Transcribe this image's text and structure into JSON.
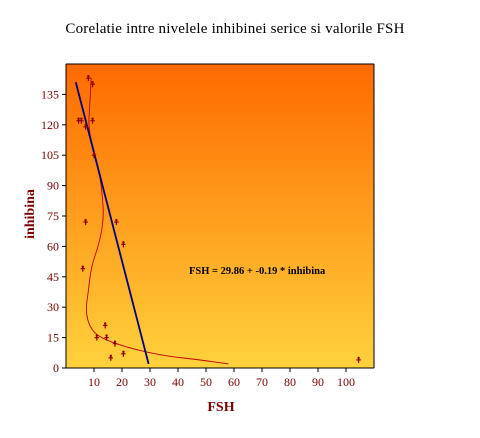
{
  "chart_data": {
    "type": "scatter",
    "title": "Corelatie intre nivelele inhibinei serice si valorile FSH",
    "xlabel": "FSH",
    "ylabel": "inhibina",
    "xlim": [
      0,
      110
    ],
    "ylim": [
      0,
      150
    ],
    "xticks": [
      10,
      20,
      30,
      40,
      50,
      60,
      70,
      80,
      90,
      100
    ],
    "yticks": [
      0,
      15,
      30,
      45,
      60,
      75,
      90,
      105,
      120,
      135
    ],
    "grid": false,
    "background": "orange-to-yellow vertical gradient",
    "colors": {
      "gradient_top": "#ff6a00",
      "gradient_bottom": "#ffd23c",
      "points": "#8b0000",
      "regression_line": "#000080",
      "smooth_curve": "#c00000",
      "axis_text": "#7a0000"
    },
    "points": [
      {
        "x": 8,
        "y": 143
      },
      {
        "x": 9.5,
        "y": 140
      },
      {
        "x": 4.5,
        "y": 122
      },
      {
        "x": 5.5,
        "y": 122
      },
      {
        "x": 9.5,
        "y": 122
      },
      {
        "x": 7,
        "y": 119
      },
      {
        "x": 10,
        "y": 105
      },
      {
        "x": 7,
        "y": 72
      },
      {
        "x": 18,
        "y": 72
      },
      {
        "x": 20.5,
        "y": 61
      },
      {
        "x": 6,
        "y": 49
      },
      {
        "x": 14,
        "y": 21
      },
      {
        "x": 11,
        "y": 15
      },
      {
        "x": 14.5,
        "y": 15
      },
      {
        "x": 17.5,
        "y": 12
      },
      {
        "x": 20.5,
        "y": 7
      },
      {
        "x": 16,
        "y": 5
      },
      {
        "x": 104.5,
        "y": 4
      }
    ],
    "regression": {
      "x_start": 3.5,
      "y_start": 141,
      "x_end": 29.5,
      "y_end": 2
    },
    "smooth_curve": [
      [
        9,
        143
      ],
      [
        8.5,
        130
      ],
      [
        8,
        118
      ],
      [
        10,
        107
      ],
      [
        12,
        96
      ],
      [
        13,
        85
      ],
      [
        13.5,
        74
      ],
      [
        12,
        62
      ],
      [
        9,
        50
      ],
      [
        8,
        38
      ],
      [
        7,
        28
      ],
      [
        8.5,
        20
      ],
      [
        12,
        15
      ],
      [
        22,
        10
      ],
      [
        35,
        6
      ],
      [
        48,
        4
      ],
      [
        58,
        2
      ]
    ],
    "annotation": "FSH = 29.86 + -0.19 * inhibina"
  }
}
